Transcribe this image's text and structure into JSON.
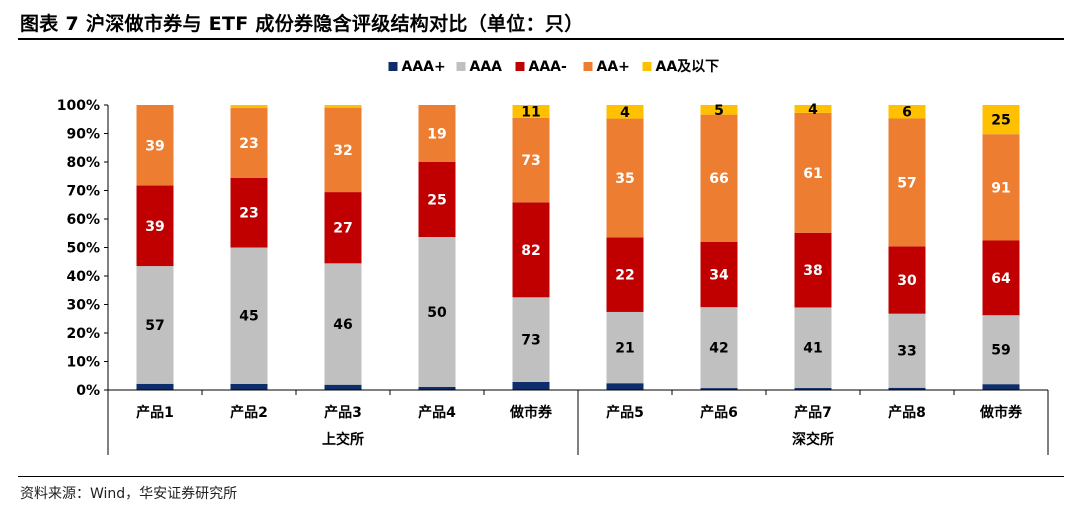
{
  "figure": {
    "title": "图表 7 沪深做市券与 ETF 成份券隐含评级结构对比（单位：只）",
    "source": "资料来源：Wind，华安证券研究所"
  },
  "colors": {
    "AAA+": "#0d2e6b",
    "AAA": "#c0c0c0",
    "AAA-": "#c00000",
    "AA+": "#ed7d31",
    "AA及以下": "#ffc000"
  },
  "chart_data": {
    "type": "bar",
    "stacked": "percent",
    "categories": [
      "产品1",
      "产品2",
      "产品3",
      "产品4",
      "做市券",
      "产品5",
      "产品6",
      "产品7",
      "产品8",
      "做市券"
    ],
    "groups": [
      {
        "label": "上交所",
        "count": 5
      },
      {
        "label": "深交所",
        "count": 5
      }
    ],
    "ylim": [
      0,
      100
    ],
    "yticks": [
      "0%",
      "10%",
      "20%",
      "30%",
      "40%",
      "50%",
      "60%",
      "70%",
      "80%",
      "90%",
      "100%"
    ],
    "legend_position": "top",
    "series": [
      {
        "name": "AAA+",
        "values": [
          3,
          2,
          2,
          1,
          7,
          2,
          1,
          1,
          1,
          5
        ]
      },
      {
        "name": "AAA",
        "values": [
          57,
          45,
          46,
          50,
          73,
          21,
          42,
          41,
          33,
          59
        ]
      },
      {
        "name": "AAA-",
        "values": [
          39,
          23,
          27,
          25,
          82,
          22,
          34,
          38,
          30,
          64
        ]
      },
      {
        "name": "AA+",
        "values": [
          39,
          23,
          32,
          19,
          73,
          35,
          66,
          61,
          57,
          91
        ]
      },
      {
        "name": "AA及以下",
        "values": [
          0,
          1,
          1,
          0,
          11,
          4,
          5,
          4,
          6,
          25
        ]
      }
    ],
    "data_labels": [
      [
        null,
        null,
        null,
        null,
        null,
        null,
        null,
        null,
        null,
        null
      ],
      [
        "57",
        "45",
        "46",
        "50",
        "73",
        "21",
        "42",
        "41",
        "33",
        "59"
      ],
      [
        "39",
        "23",
        "27",
        "25",
        "82",
        "22",
        "34",
        "38",
        "30",
        "64"
      ],
      [
        "39",
        "23",
        "32",
        "19",
        "73",
        "35",
        "66",
        "61",
        "57",
        "91"
      ],
      [
        null,
        null,
        null,
        null,
        "11",
        "4",
        "5",
        "4",
        "6",
        "25"
      ]
    ]
  }
}
